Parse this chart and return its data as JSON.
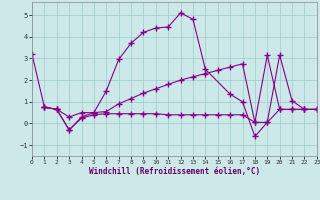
{
  "xlabel": "Windchill (Refroidissement éolien,°C)",
  "background_color": "#cce8e8",
  "grid_color": "#99cccc",
  "line_color": "#880088",
  "xlim": [
    0,
    23
  ],
  "ylim": [
    -1.5,
    5.6
  ],
  "yticks": [
    -1,
    0,
    1,
    2,
    3,
    4,
    5
  ],
  "xticks": [
    0,
    1,
    2,
    3,
    4,
    5,
    6,
    7,
    8,
    9,
    10,
    11,
    12,
    13,
    14,
    15,
    16,
    17,
    18,
    19,
    20,
    21,
    22,
    23
  ],
  "series": [
    {
      "x": [
        0,
        1,
        2,
        3,
        4,
        5,
        6,
        7,
        8,
        9,
        10,
        11,
        12,
        13,
        14,
        16,
        17,
        18,
        19,
        20,
        21,
        22,
        23
      ],
      "y": [
        3.2,
        0.75,
        0.65,
        0.3,
        0.5,
        0.5,
        1.5,
        2.95,
        3.7,
        4.2,
        4.4,
        4.45,
        5.1,
        4.8,
        2.5,
        1.35,
        1.0,
        -0.6,
        0.05,
        3.15,
        1.05,
        0.65,
        0.65
      ]
    },
    {
      "x": [
        1,
        2,
        3,
        4,
        5,
        6,
        7,
        8,
        9,
        10,
        11,
        12,
        13,
        14,
        15,
        16,
        17,
        18,
        19,
        20,
        21,
        22,
        23
      ],
      "y": [
        0.75,
        0.65,
        -0.3,
        0.3,
        0.5,
        0.55,
        0.9,
        1.15,
        1.4,
        1.6,
        1.8,
        2.0,
        2.15,
        2.3,
        2.45,
        2.6,
        2.75,
        0.05,
        3.15,
        0.65,
        0.65,
        0.65,
        0.65
      ]
    },
    {
      "x": [
        1,
        2,
        3,
        4,
        5,
        6,
        7,
        8,
        9,
        10,
        11,
        12,
        13,
        14,
        15,
        16,
        17,
        18,
        19,
        20,
        21,
        22,
        23
      ],
      "y": [
        0.75,
        0.65,
        -0.3,
        0.25,
        0.4,
        0.45,
        0.45,
        0.45,
        0.45,
        0.45,
        0.4,
        0.4,
        0.4,
        0.4,
        0.4,
        0.4,
        0.4,
        0.05,
        0.05,
        0.65,
        0.65,
        0.65,
        0.65
      ]
    }
  ]
}
